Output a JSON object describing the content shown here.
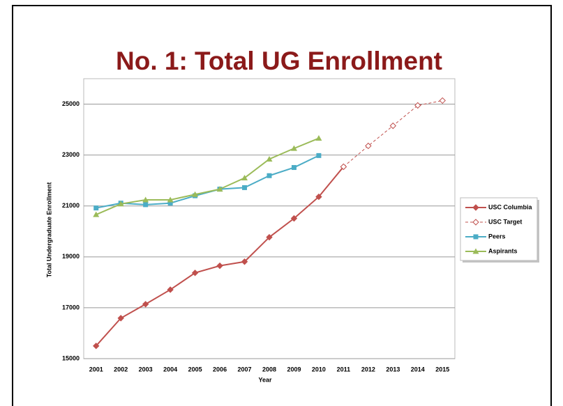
{
  "chart_data": {
    "type": "line",
    "title": "No. 1: Total UG Enrollment",
    "x_label": "Year",
    "y_label": "Total Undergraduate Enrollment",
    "categories": [
      "2001",
      "2002",
      "2003",
      "2004",
      "2005",
      "2006",
      "2007",
      "2008",
      "2009",
      "2010",
      "2011",
      "2012",
      "2013",
      "2014",
      "2015"
    ],
    "series": [
      {
        "name": "USC Columbia",
        "color": "#c0504d",
        "marker": "diamond",
        "dashed": false,
        "values": [
          15500,
          16590,
          17140,
          17710,
          18370,
          18650,
          18810,
          19770,
          20510,
          21360,
          22540,
          null,
          null,
          null,
          null
        ]
      },
      {
        "name": "USC Target",
        "color": "#c0504d",
        "marker": "open-diamond",
        "dashed": true,
        "values": [
          null,
          null,
          null,
          null,
          null,
          null,
          null,
          null,
          null,
          null,
          22540,
          23360,
          24150,
          24950,
          25140
        ]
      },
      {
        "name": "Peers",
        "color": "#4bacc6",
        "marker": "square",
        "dashed": false,
        "values": [
          20920,
          21110,
          21050,
          21110,
          21400,
          21660,
          21720,
          22190,
          22510,
          22980,
          null,
          null,
          null,
          null,
          null
        ]
      },
      {
        "name": "Aspirants",
        "color": "#9bbb59",
        "marker": "triangle",
        "dashed": false,
        "values": [
          20660,
          21080,
          21240,
          21240,
          21450,
          21660,
          22100,
          22840,
          23260,
          23660,
          null,
          null,
          null,
          null,
          null
        ]
      }
    ],
    "ylim": [
      15000,
      26000
    ],
    "yticks": [
      15000,
      17000,
      19000,
      21000,
      23000,
      25000
    ],
    "grid": true,
    "legend": "right"
  }
}
